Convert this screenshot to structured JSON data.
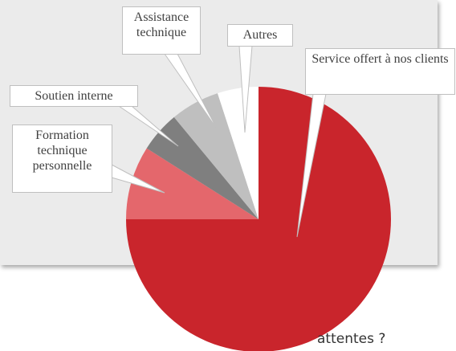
{
  "chart_data": {
    "type": "pie",
    "categories": [
      "Service offert à nos clients",
      "Formation technique personnelle",
      "Soutien interne",
      "Assistance technique",
      "Autres"
    ],
    "values": [
      75,
      9,
      5,
      6,
      5
    ],
    "colors": [
      "#c9252c",
      "#e4676c",
      "#7f7f7f",
      "#bfbfbf",
      "#ffffff"
    ],
    "annotation": "attentes ?"
  }
}
